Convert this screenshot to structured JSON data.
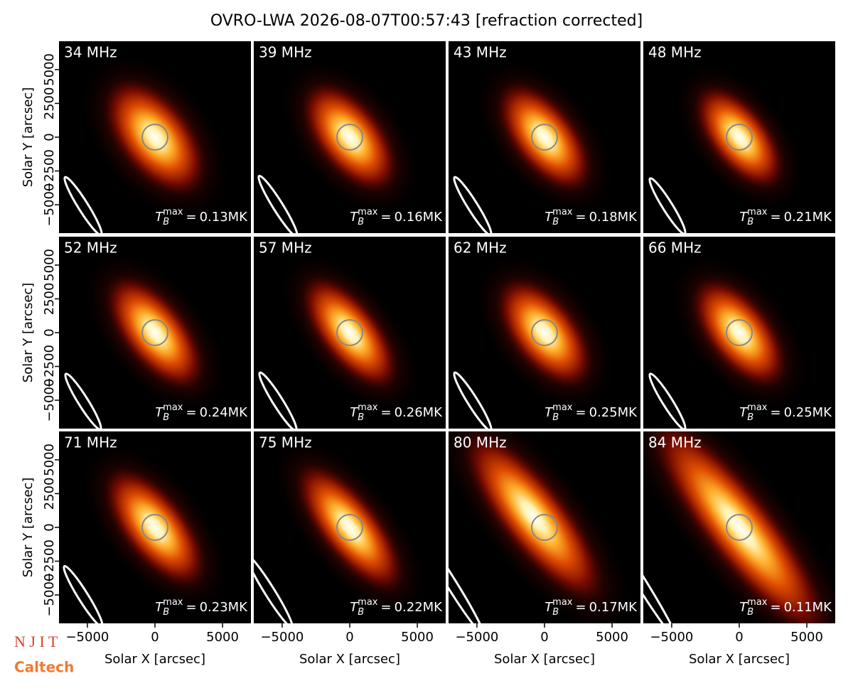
{
  "chart_data": {
    "type": "image-grid",
    "title": "OVRO-LWA 2026-08-07T00:57:43 [refraction corrected]",
    "x_label": "Solar X [arcsec]",
    "y_label": "Solar Y [arcsec]",
    "xlim": [
      -7100,
      7100
    ],
    "ylim": [
      -7100,
      7100
    ],
    "xticks": [
      {
        "value": -5000,
        "label": "−5000"
      },
      0,
      5000
    ],
    "yticks": [
      {
        "value": -5000,
        "label": "−5000"
      },
      {
        "value": -2500,
        "label": "−2500"
      },
      0,
      2500,
      5000
    ],
    "tb_symbol": {
      "base": "T",
      "sub": "B",
      "sup": "max",
      "relation": "="
    },
    "panels": [
      {
        "frequency": "34 MHz",
        "tb_max": "0.13MK"
      },
      {
        "frequency": "39 MHz",
        "tb_max": "0.16MK"
      },
      {
        "frequency": "43 MHz",
        "tb_max": "0.18MK"
      },
      {
        "frequency": "48 MHz",
        "tb_max": "0.21MK"
      },
      {
        "frequency": "52 MHz",
        "tb_max": "0.24MK"
      },
      {
        "frequency": "57 MHz",
        "tb_max": "0.26MK"
      },
      {
        "frequency": "62 MHz",
        "tb_max": "0.25MK"
      },
      {
        "frequency": "66 MHz",
        "tb_max": "0.25MK"
      },
      {
        "frequency": "71 MHz",
        "tb_max": "0.23MK"
      },
      {
        "frequency": "75 MHz",
        "tb_max": "0.22MK"
      },
      {
        "frequency": "80 MHz",
        "tb_max": "0.17MK"
      },
      {
        "frequency": "84 MHz",
        "tb_max": "0.11MK"
      }
    ]
  },
  "logos": [
    "N J I T",
    "Caltech"
  ]
}
